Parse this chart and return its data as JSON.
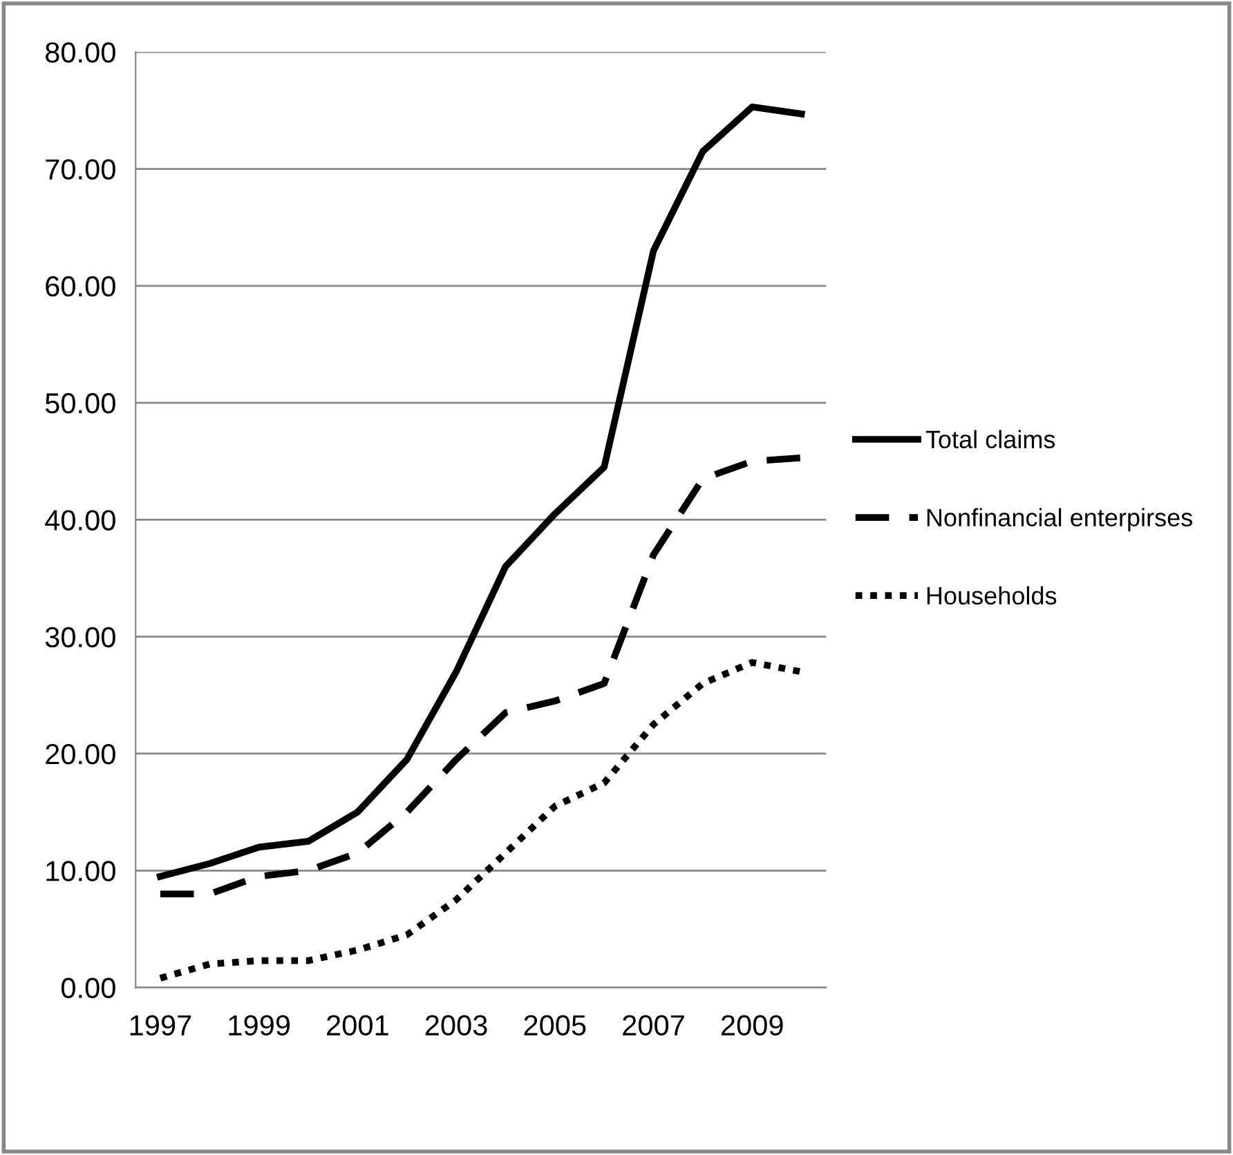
{
  "chart_data": {
    "type": "line",
    "categories": [
      "1997",
      null,
      "1999",
      null,
      "2001",
      null,
      "2003",
      null,
      "2005",
      null,
      "2007",
      null,
      "2009",
      null
    ],
    "series": [
      {
        "name": "Total claims",
        "color": "#000000",
        "line_style": "solid",
        "values": [
          9.5,
          10.6,
          12.0,
          12.5,
          15.0,
          19.5,
          27.0,
          36.0,
          40.5,
          44.5,
          63.0,
          71.5,
          75.3,
          74.7
        ]
      },
      {
        "name": "Nonfinancial enterpirses",
        "color": "#000000",
        "line_style": "dashed",
        "values": [
          8.0,
          8.0,
          9.5,
          10.0,
          11.5,
          15.0,
          19.5,
          23.5,
          24.5,
          26.0,
          37.0,
          43.5,
          45.0,
          45.3
        ]
      },
      {
        "name": "Households",
        "color": "#000000",
        "line_style": "dotted",
        "values": [
          0.8,
          2.0,
          2.3,
          2.3,
          3.2,
          4.5,
          7.5,
          11.5,
          15.5,
          17.5,
          22.5,
          26.0,
          27.8,
          27.0
        ]
      }
    ],
    "ylim": [
      0,
      80
    ],
    "yticks": [
      {
        "value": 0,
        "label": "0.00"
      },
      {
        "value": 10,
        "label": "10.00"
      },
      {
        "value": 20,
        "label": "20.00"
      },
      {
        "value": 30,
        "label": "30.00"
      },
      {
        "value": 40,
        "label": "40.00"
      },
      {
        "value": 50,
        "label": "50.00"
      },
      {
        "value": 60,
        "label": "60.00"
      },
      {
        "value": 70,
        "label": "70.00"
      },
      {
        "value": 80,
        "label": "80.00"
      }
    ],
    "grid": "y",
    "legend": "right",
    "marker": "none"
  }
}
